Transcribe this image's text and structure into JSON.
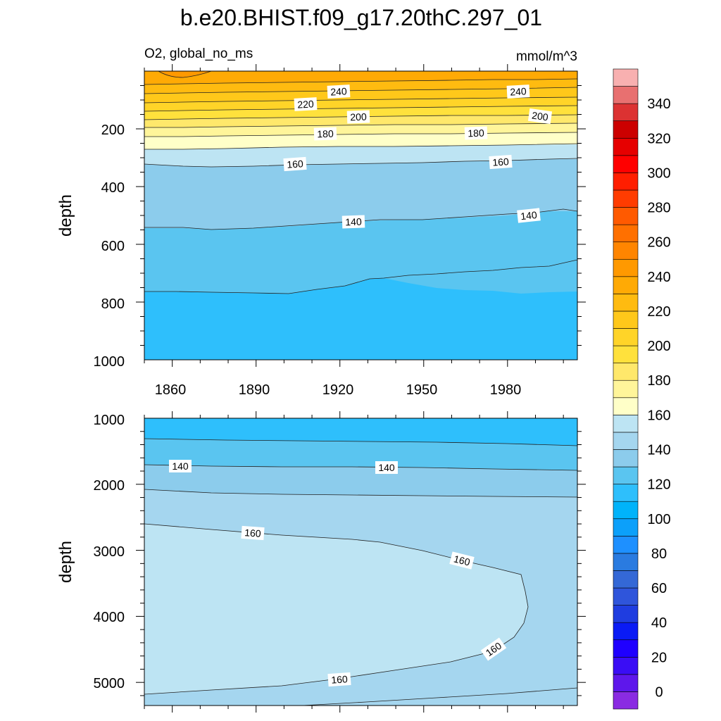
{
  "chart_data": {
    "type": "contour",
    "title": "b.e20.BHIST.f09_g17.20thC.297_01",
    "variable": "O2, global_no_ms",
    "units": "mmol/m^3",
    "colorbar": {
      "levels": [
        -10,
        0,
        10,
        20,
        30,
        40,
        50,
        60,
        70,
        80,
        90,
        100,
        110,
        120,
        130,
        140,
        150,
        160,
        170,
        180,
        190,
        200,
        210,
        220,
        230,
        240,
        250,
        260,
        270,
        280,
        290,
        300,
        310,
        320,
        330,
        340,
        350,
        360
      ],
      "colors": [
        "#8a2be2",
        "#5e17eb",
        "#3a0df5",
        "#1f00ff",
        "#0a1bf5",
        "#1f3de0",
        "#2f55db",
        "#3468d6",
        "#2a7be0",
        "#1e90ff",
        "#0ca0fa",
        "#00b3fa",
        "#2ebffc",
        "#5ac5f0",
        "#8cccec",
        "#a5d6ef",
        "#bde4f3",
        "#ffffc8",
        "#fff59a",
        "#ffe86b",
        "#ffe13c",
        "#ffd428",
        "#ffc81a",
        "#ffbb10",
        "#ffaa05",
        "#ff9900",
        "#ff8500",
        "#ff7000",
        "#ff5a00",
        "#ff3c00",
        "#ff1e00",
        "#ff0000",
        "#e60000",
        "#cc0000",
        "#dc3232",
        "#e87070",
        "#f8b0b0"
      ],
      "tick_labels": [
        "0",
        "20",
        "40",
        "60",
        "80",
        "100",
        "120",
        "140",
        "160",
        "180",
        "200",
        "220",
        "240",
        "260",
        "280",
        "300",
        "320",
        "340"
      ]
    },
    "panels": [
      {
        "name": "upper",
        "xlabel": "",
        "ylabel": "depth",
        "xlim": [
          1850,
          2005
        ],
        "ylim": [
          1000,
          0
        ],
        "x_ticks": [
          "1860",
          "1890",
          "1920",
          "1950",
          "1980"
        ],
        "y_ticks": [
          "200",
          "400",
          "600",
          "800",
          "1000"
        ],
        "contour_labels": [
          "240",
          "220",
          "200",
          "180",
          "160",
          "140",
          "240",
          "200",
          "180",
          "160",
          "140"
        ]
      },
      {
        "name": "lower",
        "xlabel": "",
        "ylabel": "depth",
        "xlim": [
          1850,
          2005
        ],
        "ylim": [
          5350,
          1000
        ],
        "x_ticks": [
          "",
          "",
          "",
          "",
          ""
        ],
        "y_ticks": [
          "1000",
          "2000",
          "3000",
          "4000",
          "5000"
        ],
        "contour_labels": [
          "140",
          "140",
          "160",
          "160",
          "160",
          "160"
        ]
      }
    ]
  }
}
